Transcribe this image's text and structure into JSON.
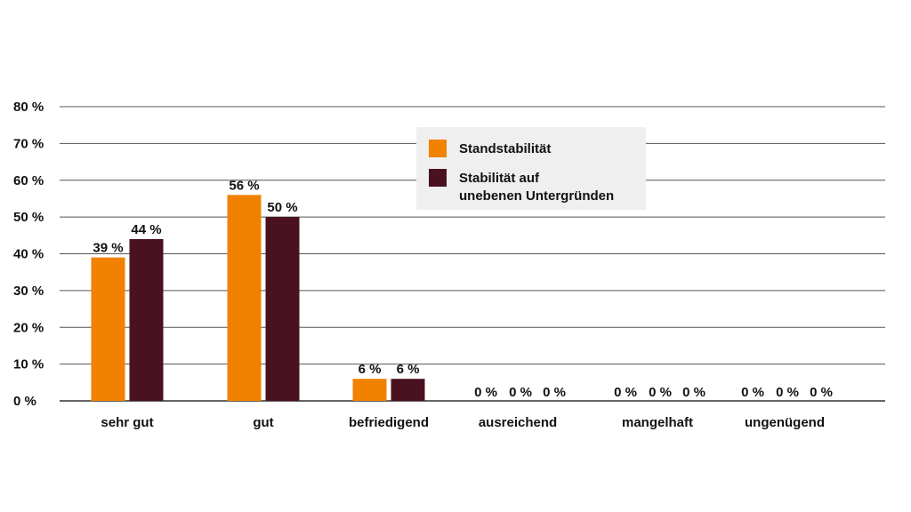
{
  "chart_data": {
    "type": "bar",
    "categories": [
      "sehr gut",
      "gut",
      "befriedigend",
      "ausreichend",
      "mangelhaft",
      "ungenügend"
    ],
    "series": [
      {
        "name": "Standstabilität",
        "color": "#F08200",
        "values": [
          39,
          56,
          6,
          0,
          0,
          0
        ]
      },
      {
        "name": "Stabilität auf unebenen Untergründen",
        "name_lines": [
          "Stabilität auf",
          "unebenen Untergründen"
        ],
        "color": "#4A1220",
        "values": [
          44,
          50,
          6,
          0,
          0,
          0
        ]
      }
    ],
    "data_labels": [
      [
        "39 %",
        "56 %",
        "6 %",
        "",
        "",
        ""
      ],
      [
        "44 %",
        "50 %",
        "6 %",
        "",
        "",
        ""
      ]
    ],
    "zero_labels": [
      [
        "0 %",
        "0 %",
        "0 %"
      ],
      [
        "0 %",
        "0 %",
        "0 %"
      ],
      [
        "0 %",
        "0 %",
        "0 %"
      ]
    ],
    "y_tick_labels": [
      "0 %",
      "10 %",
      "20 %",
      "30 %",
      "40 %",
      "50 %",
      "60 %",
      "70 %",
      "80 %"
    ],
    "ylim": [
      0,
      80
    ],
    "y_step": 10,
    "grid": true,
    "legend_position": "top-center",
    "legend_background": "#EFEFEF",
    "xlabel": "",
    "ylabel": "",
    "title": ""
  }
}
